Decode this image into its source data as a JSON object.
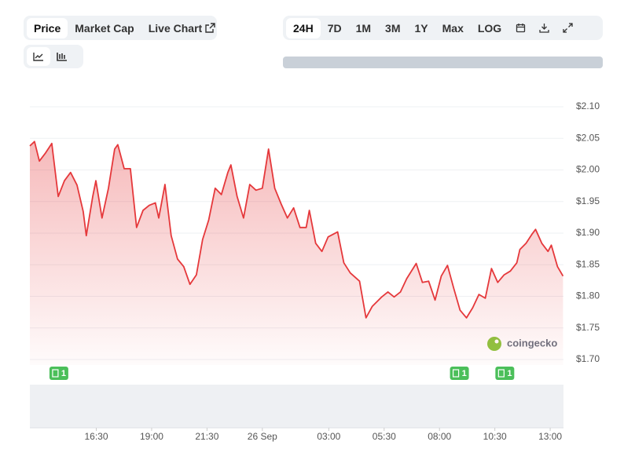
{
  "ui": {
    "tabs": [
      "Price",
      "Market Cap",
      "Live Chart"
    ],
    "ranges": [
      "24H",
      "7D",
      "1M",
      "3M",
      "1Y",
      "Max",
      "LOG"
    ],
    "watermark": "coingecko"
  },
  "chart_data": {
    "type": "area",
    "color": "#e5383b",
    "x": [
      13.5,
      13.71,
      13.93,
      14.21,
      14.49,
      14.78,
      15.06,
      15.34,
      15.63,
      15.91,
      16.05,
      16.34,
      16.48,
      16.76,
      17.05,
      17.33,
      17.47,
      17.76,
      18.04,
      18.32,
      18.61,
      18.89,
      19.17,
      19.32,
      19.6,
      19.88,
      20.17,
      20.45,
      20.73,
      21.02,
      21.3,
      21.58,
      21.87,
      22.15,
      22.44,
      22.58,
      22.86,
      23.15,
      23.43,
      23.71,
      24.0,
      24.28,
      24.56,
      24.85,
      25.13,
      25.41,
      25.7,
      25.98,
      26.12,
      26.41,
      26.69,
      26.97,
      27.4,
      27.68,
      27.97,
      28.39,
      28.68,
      28.96,
      29.39,
      29.67,
      29.95,
      30.24,
      30.52,
      30.95,
      31.23,
      31.51,
      31.8,
      32.08,
      32.36,
      32.65,
      32.93,
      33.22,
      33.5,
      33.78,
      34.07,
      34.35,
      34.63,
      34.92,
      35.2,
      35.49,
      35.63,
      35.91,
      36.19,
      36.34,
      36.62,
      36.9,
      37.05,
      37.33,
      37.58
    ],
    "values": [
      2.038,
      2.045,
      2.014,
      2.027,
      2.042,
      1.958,
      1.983,
      1.996,
      1.976,
      1.934,
      1.896,
      1.958,
      1.983,
      1.924,
      1.971,
      2.033,
      2.04,
      2.002,
      2.002,
      1.909,
      1.936,
      1.944,
      1.948,
      1.924,
      1.977,
      1.896,
      1.859,
      1.847,
      1.819,
      1.834,
      1.89,
      1.921,
      1.971,
      1.961,
      1.996,
      2.008,
      1.958,
      1.924,
      1.977,
      1.968,
      1.971,
      2.033,
      1.971,
      1.946,
      1.924,
      1.94,
      1.909,
      1.909,
      1.936,
      1.884,
      1.871,
      1.894,
      1.902,
      1.853,
      1.837,
      1.824,
      1.766,
      1.784,
      1.799,
      1.807,
      1.799,
      1.807,
      1.828,
      1.852,
      1.822,
      1.824,
      1.794,
      1.832,
      1.849,
      1.812,
      1.778,
      1.766,
      1.782,
      1.803,
      1.797,
      1.844,
      1.822,
      1.834,
      1.84,
      1.853,
      1.874,
      1.884,
      1.899,
      1.906,
      1.884,
      1.871,
      1.881,
      1.847,
      1.832
    ],
    "xlim": [
      13.5,
      37.6
    ],
    "xticks": [
      {
        "value": 16.5,
        "label": "16:30"
      },
      {
        "value": 19,
        "label": "19:00"
      },
      {
        "value": 21.5,
        "label": "21:30"
      },
      {
        "value": 24,
        "label": "26 Sep"
      },
      {
        "value": 27,
        "label": "03:00"
      },
      {
        "value": 29.5,
        "label": "05:30"
      },
      {
        "value": 32,
        "label": "08:00"
      },
      {
        "value": 34.5,
        "label": "10:30"
      },
      {
        "value": 37,
        "label": "13:00"
      }
    ],
    "ylim": [
      1.7,
      2.1
    ],
    "yticks": [
      {
        "value": 1.7,
        "label": "$1.70"
      },
      {
        "value": 1.75,
        "label": "$1.75"
      },
      {
        "value": 1.8,
        "label": "$1.80"
      },
      {
        "value": 1.85,
        "label": "$1.85"
      },
      {
        "value": 1.9,
        "label": "$1.90"
      },
      {
        "value": 1.95,
        "label": "$1.95"
      },
      {
        "value": 2.0,
        "label": "$2.00"
      },
      {
        "value": 2.05,
        "label": "$2.05"
      },
      {
        "value": 2.1,
        "label": "$2.10"
      }
    ],
    "grid": true,
    "events": [
      {
        "x": 14.81,
        "count": 1
      },
      {
        "x": 32.9,
        "count": 1
      },
      {
        "x": 34.95,
        "count": 1
      }
    ]
  }
}
